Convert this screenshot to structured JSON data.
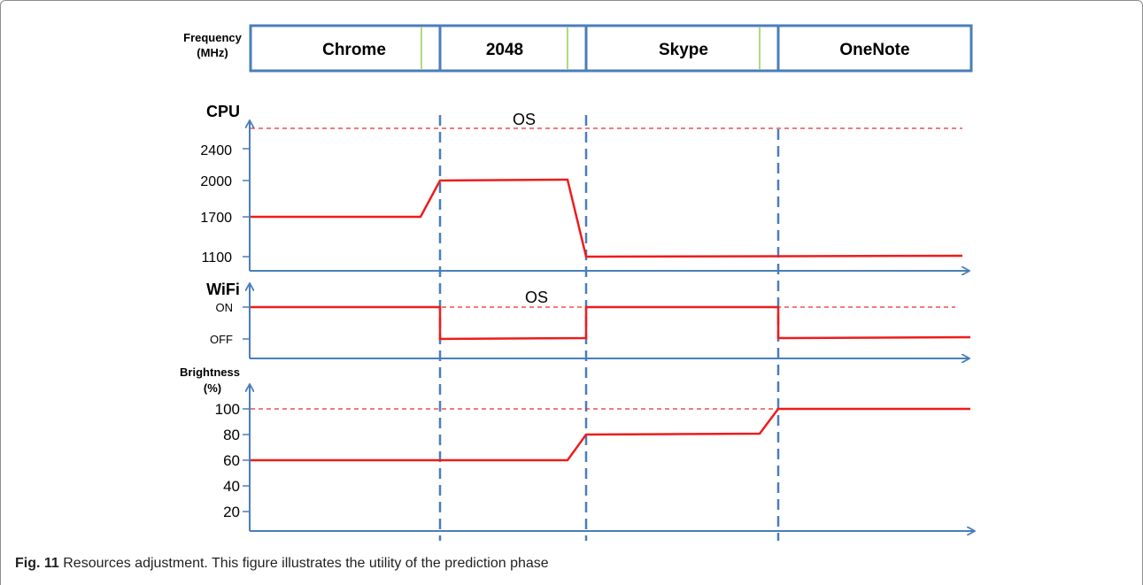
{
  "frequency_label": [
    "Frequency",
    "(MHz)"
  ],
  "apps": [
    "Chrome",
    "2048",
    "Skype",
    "OneNote"
  ],
  "phase_label": "OS",
  "colors": {
    "axis": "#4a7ebb",
    "signal": "#ee1c1c",
    "reference": "#e0302e",
    "prediction_mark": "#92d050",
    "text": "#000000"
  },
  "panels": {
    "cpu": {
      "title": "CPU",
      "ticks": [
        "2400",
        "2000",
        "1700",
        "1100"
      ]
    },
    "wifi": {
      "title": "WiFi",
      "ticks": [
        "ON",
        "OFF"
      ]
    },
    "brightness": {
      "title": [
        "Brightness",
        "(%)"
      ],
      "ticks": [
        "100",
        "80",
        "60",
        "40",
        "20"
      ]
    }
  },
  "chart_data": [
    {
      "type": "line",
      "title": "CPU",
      "categories": [
        "Chrome",
        "2048",
        "Skype",
        "OneNote"
      ],
      "values": [
        1700,
        2000,
        1100,
        1100
      ],
      "reference_label": "OS"
    },
    {
      "type": "line",
      "title": "WiFi",
      "categories": [
        "Chrome",
        "2048",
        "Skype",
        "OneNote"
      ],
      "values": [
        "ON",
        "OFF",
        "ON",
        "OFF"
      ],
      "reference_label": "OS"
    },
    {
      "type": "line",
      "title": "Brightness (%)",
      "categories": [
        "Chrome",
        "2048",
        "Skype",
        "OneNote"
      ],
      "values": [
        60,
        60,
        80,
        100
      ],
      "reference": 100
    }
  ],
  "caption": {
    "label": "Fig. 11",
    "text": " Resources adjustment. This figure illustrates the utility of the prediction phase"
  }
}
